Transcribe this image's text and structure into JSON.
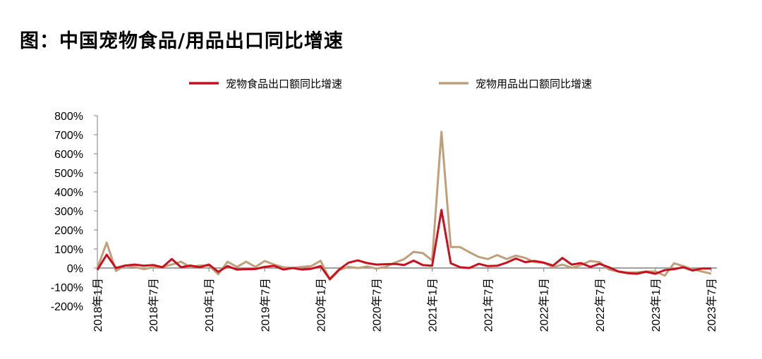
{
  "title": "图：中国宠物食品/用品出口同比增速",
  "chart_data": {
    "type": "line",
    "title": "图：中国宠物食品/用品出口同比增速",
    "xlabel": "",
    "ylabel": "",
    "ylim": [
      -200,
      800
    ],
    "yticks": [
      "800%",
      "700%",
      "600%",
      "500%",
      "400%",
      "300%",
      "200%",
      "100%",
      "0%",
      "-100%",
      "-200%"
    ],
    "ytick_values": [
      800,
      700,
      600,
      500,
      400,
      300,
      200,
      100,
      0,
      -100,
      -200
    ],
    "x_start": "2018-01",
    "x_end": "2023-07",
    "xticks": [
      "2018年1月",
      "2018年7月",
      "2019年1月",
      "2019年7月",
      "2020年1月",
      "2020年7月",
      "2021年1月",
      "2021年7月",
      "2022年1月",
      "2022年7月",
      "2023年1月",
      "2023年7月"
    ],
    "grid": false,
    "legend": "top",
    "series": [
      {
        "name": "宠物食品出口额同比增速",
        "color": "#C8101E",
        "values": [
          -10,
          70,
          0,
          13,
          18,
          12,
          16,
          4,
          47,
          4,
          13,
          4,
          18,
          -20,
          10,
          -8,
          -6,
          -5,
          6,
          12,
          -8,
          0,
          -8,
          -4,
          10,
          -58,
          -8,
          28,
          40,
          26,
          18,
          20,
          22,
          16,
          39,
          15,
          12,
          305,
          25,
          4,
          0,
          22,
          10,
          12,
          28,
          50,
          31,
          37,
          28,
          13,
          53,
          18,
          26,
          6,
          22,
          4,
          -18,
          -27,
          -30,
          -20,
          -30,
          -11,
          -6,
          4,
          -13,
          -3,
          -3
        ]
      },
      {
        "name": "宠物用品出口额同比增速",
        "color": "#C0A07A",
        "values": [
          0,
          133,
          -15,
          13,
          6,
          -6,
          4,
          6,
          18,
          33,
          4,
          13,
          13,
          -33,
          33,
          6,
          33,
          6,
          37,
          18,
          4,
          0,
          6,
          10,
          38,
          -62,
          -11,
          6,
          0,
          8,
          -3,
          6,
          28,
          47,
          85,
          78,
          40,
          715,
          110,
          110,
          83,
          58,
          47,
          68,
          47,
          65,
          53,
          31,
          28,
          4,
          18,
          1,
          15,
          37,
          31,
          -8,
          -18,
          -23,
          -23,
          -18,
          -18,
          -40,
          25,
          10,
          -6,
          -18,
          -30
        ]
      }
    ]
  }
}
